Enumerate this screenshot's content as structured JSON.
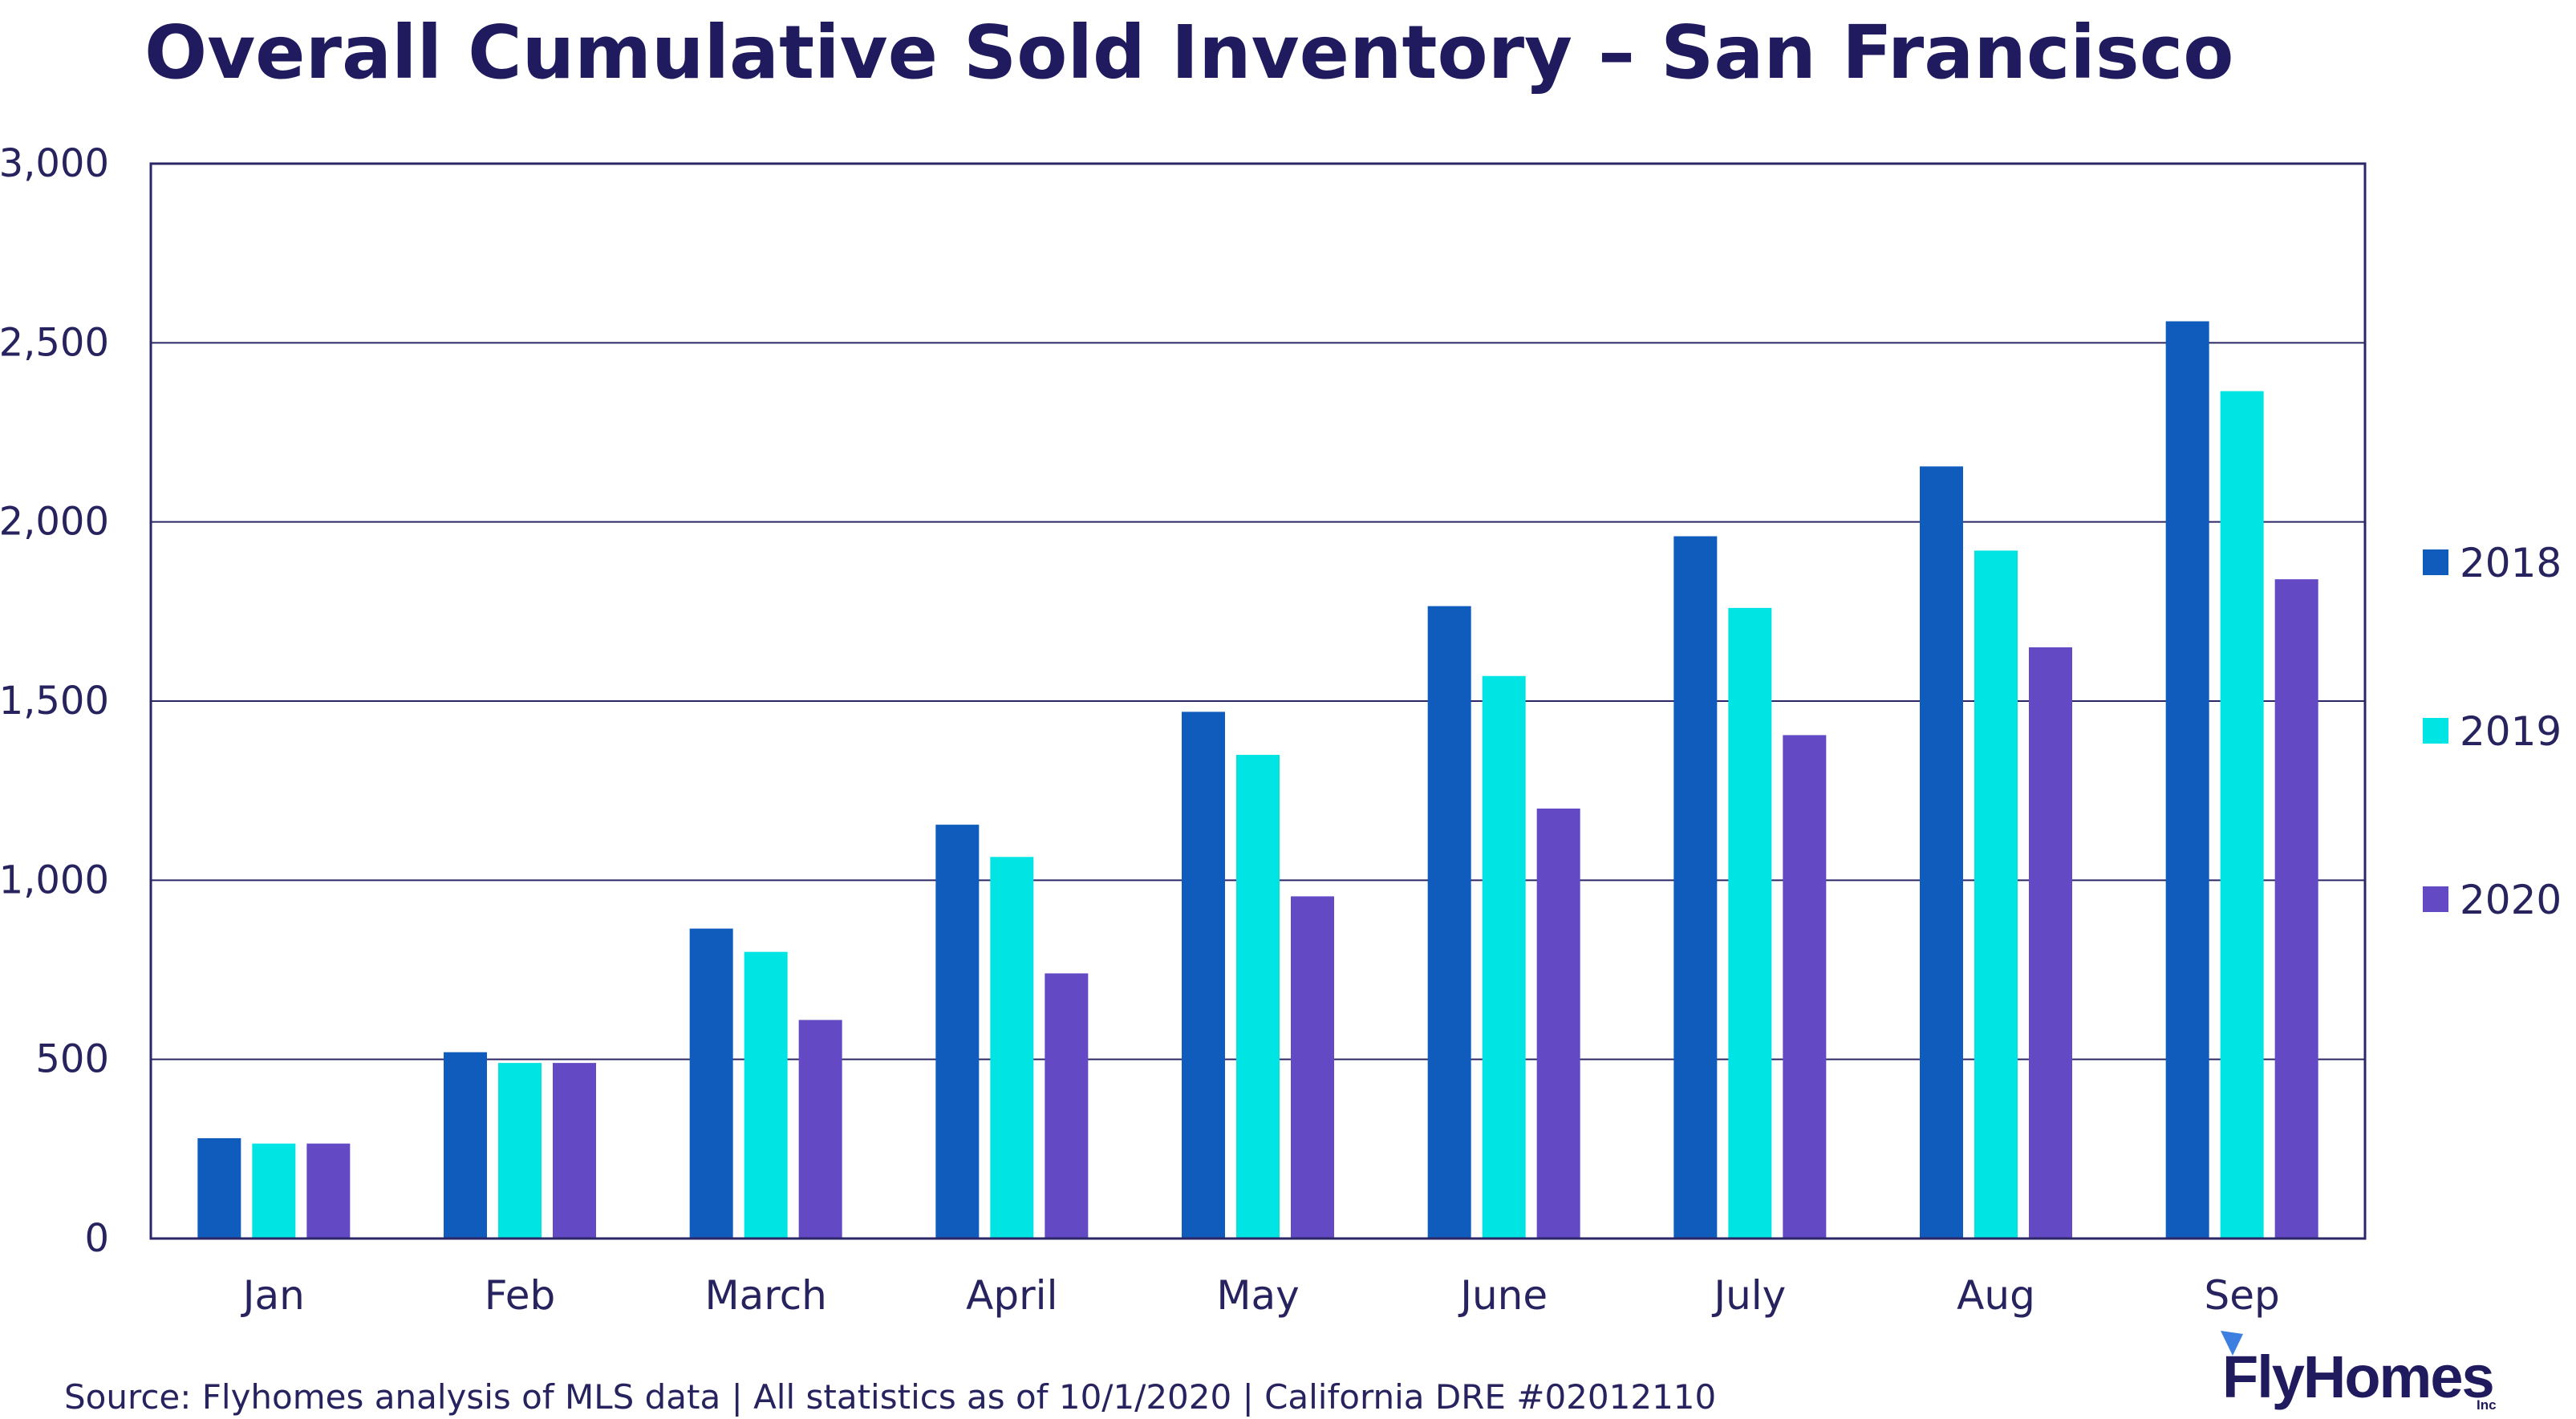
{
  "chart_data": {
    "type": "bar",
    "title": "Overall Cumulative Sold Inventory – San Francisco",
    "xlabel": "",
    "ylabel": "",
    "categories": [
      "Jan",
      "Feb",
      "March",
      "April",
      "May",
      "June",
      "July",
      "Aug",
      "Sep"
    ],
    "series": [
      {
        "name": "2018",
        "color": "#105cbc",
        "values": [
          280,
          520,
          865,
          1155,
          1470,
          1765,
          1960,
          2155,
          2560
        ]
      },
      {
        "name": "2019",
        "color": "#00e4e4",
        "values": [
          265,
          490,
          800,
          1065,
          1350,
          1570,
          1760,
          1920,
          2365
        ]
      },
      {
        "name": "2020",
        "color": "#6349c4",
        "values": [
          265,
          490,
          610,
          740,
          955,
          1200,
          1405,
          1650,
          1840
        ]
      }
    ],
    "ylim": [
      0,
      3000
    ],
    "yticks": [
      0,
      500,
      1000,
      1500,
      2000,
      2500,
      3000
    ],
    "ytick_labels": [
      "0",
      "500",
      "1,000",
      "1,500",
      "2,000",
      "2,500",
      "3,000"
    ],
    "grid": true,
    "legend_position": "right"
  },
  "footer": {
    "source": "Source: Flyhomes analysis of MLS data | All statistics as of 10/1/2020 | California DRE #02012110"
  },
  "logo": {
    "name": "FlyHomes",
    "suffix": "Inc"
  }
}
